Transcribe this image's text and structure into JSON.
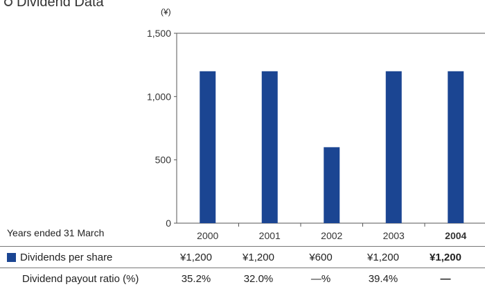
{
  "title": "Dividend Data",
  "chart_data": {
    "type": "bar",
    "categories": [
      "2000",
      "2001",
      "2002",
      "2003",
      "2004"
    ],
    "values": [
      1200,
      1200,
      600,
      1200,
      1200
    ],
    "ylim": [
      0,
      1500
    ],
    "yticks": [
      "0",
      "500",
      "1,000",
      "1,500"
    ],
    "ytick_values": [
      0,
      500,
      1000,
      1500
    ],
    "unit": "(¥)",
    "grid": false,
    "bar_color": "#1b4592",
    "highlight_category": "2004"
  },
  "table": {
    "caption": "Years ended 31 March",
    "rows": [
      {
        "label": "Dividends per share",
        "values": [
          "¥1,200",
          "¥1,200",
          "¥600",
          "¥1,200",
          "¥1,200"
        ]
      },
      {
        "label": "Dividend payout ratio (%)",
        "values": [
          "35.2%",
          "32.0%",
          "—%",
          "39.4%",
          "—"
        ]
      }
    ]
  }
}
